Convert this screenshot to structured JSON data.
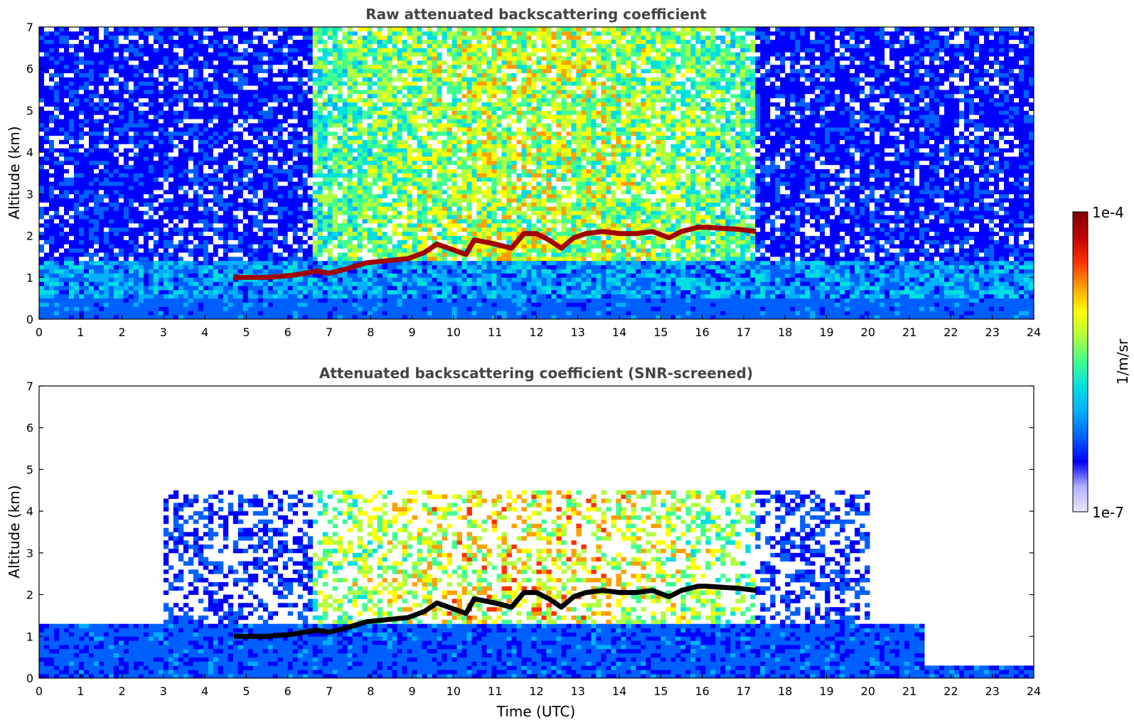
{
  "chart_data": [
    {
      "type": "heatmap",
      "title": "Raw attenuated backscattering coefficient",
      "xlabel": "",
      "ylabel": "Altitude (km)",
      "xlim": [
        0,
        24
      ],
      "ylim": [
        0,
        7
      ],
      "x_ticks": [
        "0",
        "1",
        "2",
        "3",
        "4",
        "5",
        "6",
        "7",
        "8",
        "9",
        "10",
        "11",
        "12",
        "13",
        "14",
        "15",
        "16",
        "17",
        "18",
        "19",
        "20",
        "21",
        "22",
        "23",
        "24"
      ],
      "y_ticks": [
        "0",
        "1",
        "2",
        "3",
        "4",
        "5",
        "6",
        "7"
      ],
      "grid": false,
      "colorscale": "jet",
      "cloud_layer": {
        "x": [
          4.7,
          5.5,
          6.1,
          6.7,
          7.0,
          7.4,
          7.9,
          8.4,
          8.9,
          9.3,
          9.6,
          10.3,
          10.5,
          11.0,
          11.4,
          11.7,
          12.0,
          12.3,
          12.6,
          12.9,
          13.2,
          13.6,
          14.0,
          14.4,
          14.8,
          15.2,
          15.5,
          15.9,
          16.1,
          16.9,
          17.3
        ],
        "y": [
          1.0,
          1.0,
          1.05,
          1.15,
          1.1,
          1.2,
          1.35,
          1.4,
          1.45,
          1.6,
          1.8,
          1.55,
          1.9,
          1.8,
          1.7,
          2.05,
          2.05,
          1.9,
          1.7,
          1.95,
          2.05,
          2.1,
          2.05,
          2.05,
          2.1,
          1.95,
          2.1,
          2.2,
          2.2,
          2.15,
          2.1
        ]
      }
    },
    {
      "type": "heatmap",
      "title": "Attenuated backscattering coefficient (SNR-screened)",
      "xlabel": "Time (UTC)",
      "ylabel": "Altitude (km)",
      "xlim": [
        0,
        24
      ],
      "ylim": [
        0,
        7
      ],
      "x_ticks": [
        "0",
        "1",
        "2",
        "3",
        "4",
        "5",
        "6",
        "7",
        "8",
        "9",
        "10",
        "11",
        "12",
        "13",
        "14",
        "15",
        "16",
        "17",
        "18",
        "19",
        "20",
        "21",
        "22",
        "23",
        "24"
      ],
      "y_ticks": [
        "0",
        "1",
        "2",
        "3",
        "4",
        "5",
        "6",
        "7"
      ],
      "grid": false,
      "colorscale": "jet",
      "cloud_layer": {
        "x": [
          4.7,
          5.5,
          6.1,
          6.7,
          7.0,
          7.4,
          7.9,
          8.4,
          8.9,
          9.3,
          9.6,
          10.3,
          10.5,
          11.0,
          11.4,
          11.7,
          12.0,
          12.3,
          12.6,
          12.9,
          13.2,
          13.6,
          14.0,
          14.4,
          14.8,
          15.2,
          15.5,
          15.9,
          16.1,
          16.9,
          17.3
        ],
        "y": [
          1.0,
          1.0,
          1.05,
          1.15,
          1.1,
          1.2,
          1.35,
          1.4,
          1.45,
          1.6,
          1.8,
          1.55,
          1.9,
          1.8,
          1.7,
          2.05,
          2.05,
          1.9,
          1.7,
          1.95,
          2.05,
          2.1,
          2.05,
          2.05,
          2.1,
          1.95,
          2.1,
          2.2,
          2.2,
          2.15,
          2.1
        ]
      }
    }
  ],
  "colorbar": {
    "label": "1/m/sr",
    "max_label": "1e-4",
    "min_label": "1e-7",
    "range": [
      1e-07,
      0.0001
    ],
    "scale": "log",
    "colors": [
      "#e8e8ff",
      "#b0b0ff",
      "#0000ff",
      "#0060ff",
      "#00b0ff",
      "#00e0e0",
      "#40ff90",
      "#b0ff40",
      "#ffff00",
      "#ffa000",
      "#ff3000",
      "#c00000",
      "#800000"
    ]
  }
}
